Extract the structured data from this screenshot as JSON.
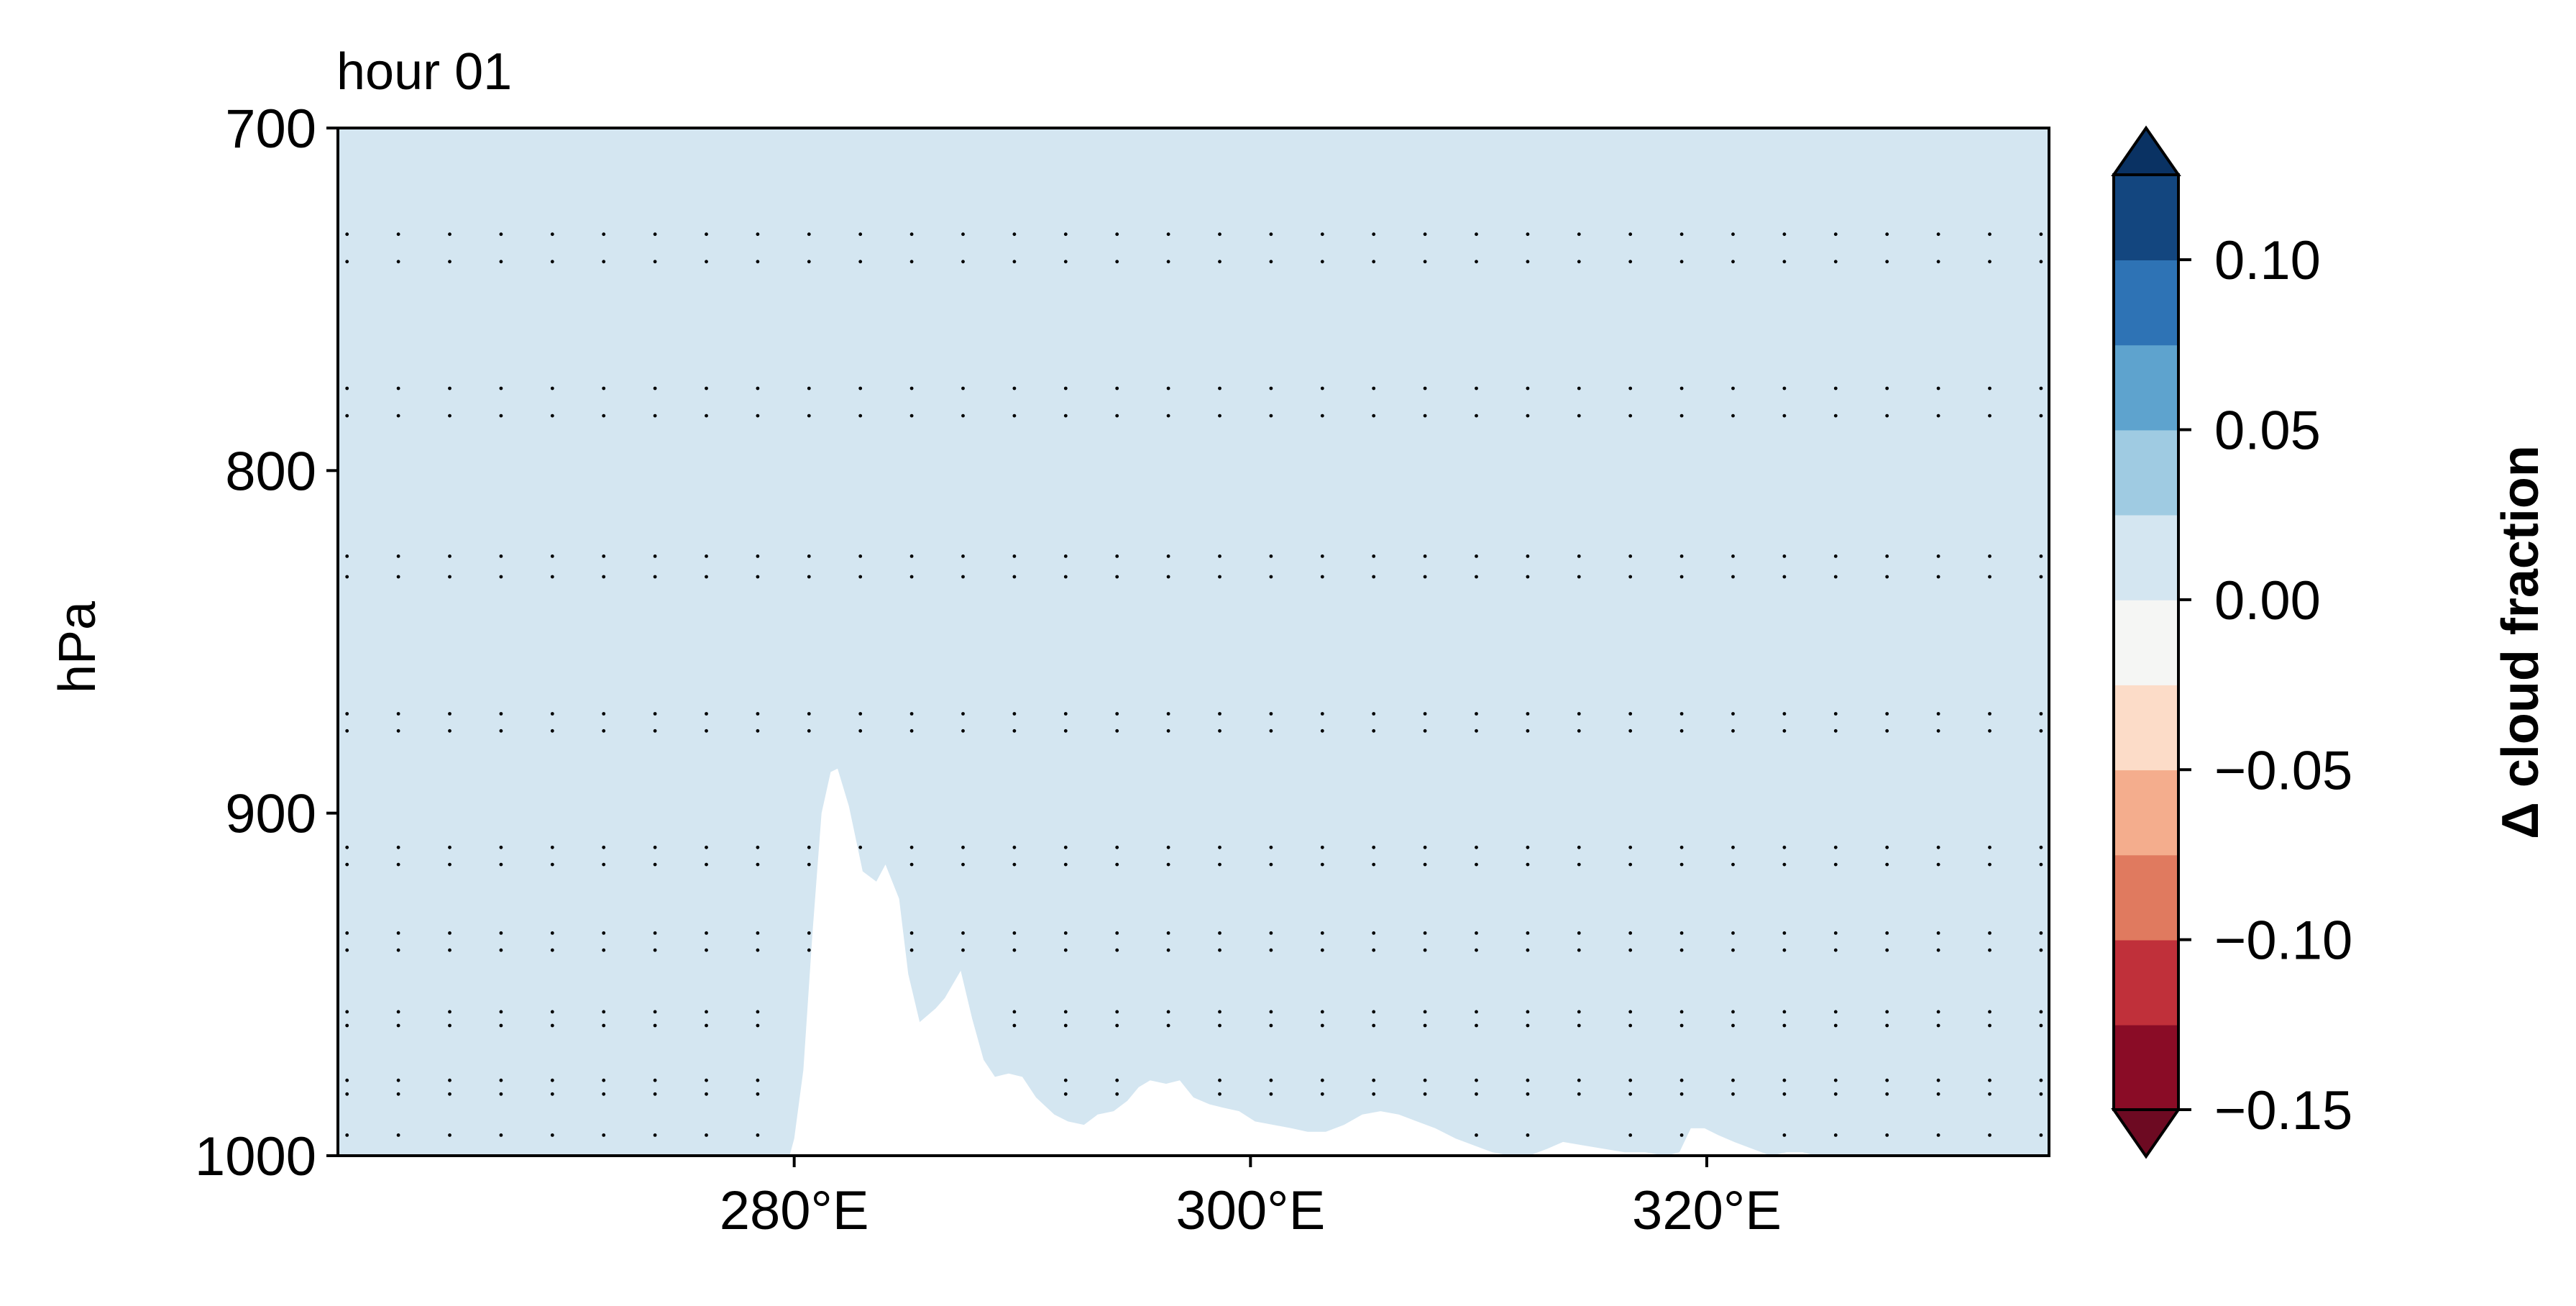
{
  "chart_data": {
    "type": "heatmap",
    "title": "hour 01",
    "xlabel": "",
    "ylabel": "hPa",
    "x_unit_suffix": "°E",
    "xlim": [
      260,
      335
    ],
    "ylim": [
      1000,
      700
    ],
    "x_ticks": [
      280,
      300,
      320
    ],
    "x_tick_labels": [
      "280°E",
      "300°E",
      "320°E"
    ],
    "y_ticks": [
      700,
      800,
      900,
      1000
    ],
    "y_tick_labels": [
      "700",
      "800",
      "900",
      "1000"
    ],
    "grid": false,
    "field_value": 0.0,
    "field_color": "#d4e6f1",
    "terrain_color": "#ffffff",
    "terrain_profile": [
      [
        279.8,
        1000
      ],
      [
        280.0,
        995
      ],
      [
        280.4,
        975
      ],
      [
        280.8,
        935
      ],
      [
        281.2,
        900
      ],
      [
        281.6,
        888
      ],
      [
        281.9,
        887
      ],
      [
        282.4,
        898
      ],
      [
        283.0,
        917
      ],
      [
        283.6,
        920
      ],
      [
        284.0,
        915
      ],
      [
        284.6,
        925
      ],
      [
        285.0,
        947
      ],
      [
        285.5,
        961
      ],
      [
        286.2,
        957
      ],
      [
        286.6,
        954
      ],
      [
        287.3,
        946
      ],
      [
        287.8,
        960
      ],
      [
        288.3,
        972
      ],
      [
        288.8,
        977
      ],
      [
        289.4,
        976
      ],
      [
        290.0,
        977
      ],
      [
        290.6,
        983
      ],
      [
        291.4,
        988
      ],
      [
        292.0,
        990
      ],
      [
        292.7,
        991
      ],
      [
        293.3,
        988
      ],
      [
        294.0,
        987
      ],
      [
        294.6,
        984
      ],
      [
        295.1,
        980
      ],
      [
        295.6,
        978
      ],
      [
        296.3,
        979
      ],
      [
        296.9,
        978
      ],
      [
        297.5,
        983
      ],
      [
        298.2,
        985
      ],
      [
        298.8,
        986
      ],
      [
        299.5,
        987
      ],
      [
        300.2,
        990
      ],
      [
        301.0,
        991
      ],
      [
        301.8,
        992
      ],
      [
        302.5,
        993
      ],
      [
        303.3,
        993
      ],
      [
        304.1,
        991
      ],
      [
        304.9,
        988
      ],
      [
        305.7,
        987
      ],
      [
        306.5,
        988
      ],
      [
        307.3,
        990
      ],
      [
        308.1,
        992
      ],
      [
        309.0,
        995
      ],
      [
        309.8,
        997
      ],
      [
        310.6,
        999
      ],
      [
        311.4,
        1000
      ],
      [
        312.2,
        1000
      ],
      [
        313.0,
        998
      ],
      [
        313.7,
        996
      ],
      [
        314.6,
        997
      ],
      [
        315.5,
        998
      ],
      [
        316.4,
        999
      ],
      [
        317.3,
        999
      ],
      [
        318.2,
        1000
      ],
      [
        318.8,
        999
      ],
      [
        319.3,
        992
      ],
      [
        319.9,
        992
      ],
      [
        320.5,
        994
      ],
      [
        321.2,
        996
      ],
      [
        322.0,
        998
      ],
      [
        322.8,
        1000
      ],
      [
        323.5,
        999
      ],
      [
        324.2,
        999
      ],
      [
        324.8,
        1000
      ]
    ],
    "stipple_marker": ".",
    "stipple_color": "#000000",
    "stipple_levels": [
      731,
      739,
      776,
      784,
      825,
      831,
      871,
      876,
      910,
      915,
      935,
      940,
      958,
      962,
      978,
      982,
      994
    ],
    "stipple_lon_step": 2.25,
    "colorbar": {
      "label": "Δ cloud fraction",
      "boundaries": [
        -0.15,
        -0.125,
        -0.1,
        -0.075,
        -0.05,
        -0.025,
        0.0,
        0.025,
        0.05,
        0.075,
        0.1,
        0.125
      ],
      "colors": [
        "#8a0c26",
        "#c0303a",
        "#e07a5f",
        "#f4ad8d",
        "#fcdcc8",
        "#f5f6f4",
        "#d4e6f1",
        "#9fcbe2",
        "#5ea3ce",
        "#2e73b5",
        "#13467f"
      ],
      "extend_under_color": "#6d0a22",
      "extend_over_color": "#0a3263",
      "ticks": [
        -0.15,
        -0.1,
        -0.05,
        0.0,
        0.05,
        0.1
      ],
      "tick_labels": [
        "−0.15",
        "−0.10",
        "−0.05",
        "0.00",
        "0.05",
        "0.10"
      ]
    }
  }
}
